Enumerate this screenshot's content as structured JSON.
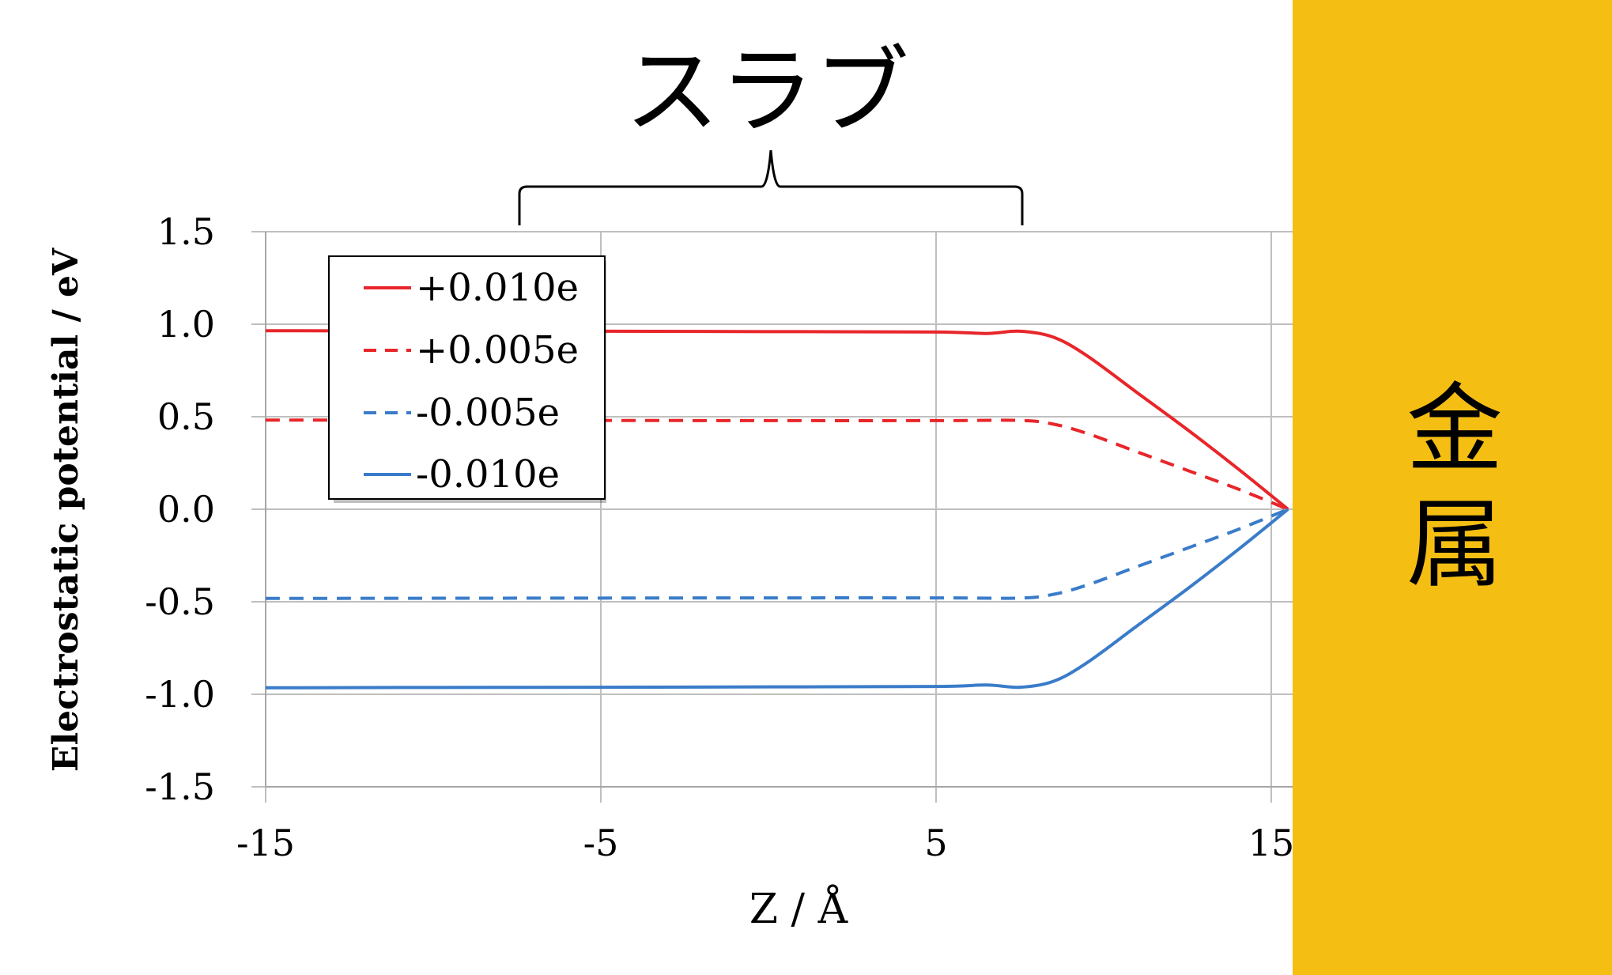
{
  "slab_label": "スラブ",
  "metal_label": [
    "金",
    "属"
  ],
  "chart_data": {
    "type": "line",
    "title": "",
    "xlabel": "Z / Å",
    "ylabel": "Electrostatic potential / eV",
    "xlim": [
      -15,
      15.5
    ],
    "ylim": [
      -1.5,
      1.5
    ],
    "xticks": [
      -15,
      -5,
      5,
      15
    ],
    "xtick_labels": [
      "-15",
      "-5",
      "5",
      "15"
    ],
    "yticks": [
      1.5,
      1.0,
      0.5,
      0.0,
      -0.5,
      -1.0,
      -1.5
    ],
    "ytick_labels": [
      "1.5",
      "1.0",
      "0.5",
      "0.0",
      "-0.5",
      "-1.0",
      "-1.5"
    ],
    "grid": true,
    "legend_position": "top-left",
    "series": [
      {
        "name": "+0.010e",
        "color": "#E8262A",
        "style": "solid",
        "x": [
          -15,
          -10,
          -5,
          0,
          5,
          6.5,
          7.5,
          8.5,
          9.5,
          11,
          12.5,
          14,
          15.5
        ],
        "y": [
          0.965,
          0.963,
          0.962,
          0.96,
          0.958,
          0.95,
          0.962,
          0.93,
          0.83,
          0.63,
          0.43,
          0.22,
          0.0
        ]
      },
      {
        "name": "+0.005e",
        "color": "#E8262A",
        "style": "dashed",
        "x": [
          -15,
          -10,
          -5,
          0,
          5,
          7.5,
          8.5,
          9.5,
          11,
          12.5,
          14,
          15.5
        ],
        "y": [
          0.482,
          0.481,
          0.48,
          0.479,
          0.479,
          0.48,
          0.46,
          0.41,
          0.31,
          0.21,
          0.11,
          0.0
        ]
      },
      {
        "name": "-0.005e",
        "color": "#3A7CC9",
        "style": "dashed",
        "x": [
          -15,
          -10,
          -5,
          0,
          5,
          7.5,
          8.5,
          9.5,
          11,
          12.5,
          14,
          15.5
        ],
        "y": [
          -0.482,
          -0.481,
          -0.48,
          -0.479,
          -0.479,
          -0.48,
          -0.46,
          -0.41,
          -0.31,
          -0.21,
          -0.11,
          0.0
        ]
      },
      {
        "name": "-0.010e",
        "color": "#3A7CC9",
        "style": "solid",
        "x": [
          -15,
          -10,
          -5,
          0,
          5,
          6.5,
          7.5,
          8.5,
          9.5,
          11,
          12.5,
          14,
          15.5
        ],
        "y": [
          -0.965,
          -0.963,
          -0.962,
          -0.96,
          -0.958,
          -0.95,
          -0.962,
          -0.93,
          -0.83,
          -0.63,
          -0.43,
          -0.22,
          0.0
        ]
      }
    ],
    "slab_bracket_x": [
      -7.5,
      7.5
    ]
  }
}
